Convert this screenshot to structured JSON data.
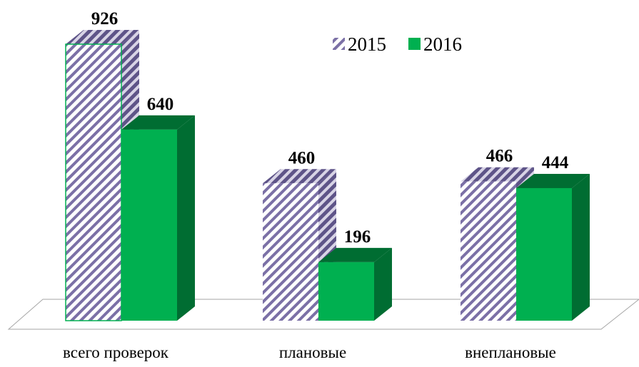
{
  "chart_data": {
    "type": "bar3d",
    "categories": [
      "всего проверок",
      "плановые",
      "внеплановые"
    ],
    "series": [
      {
        "name": "2015",
        "color": "#7b70a6",
        "pattern": "hatch",
        "values": [
          926,
          460,
          466
        ]
      },
      {
        "name": "2016",
        "color": "#00b050",
        "values": [
          640,
          196,
          444
        ]
      }
    ],
    "legend": "top-right"
  }
}
